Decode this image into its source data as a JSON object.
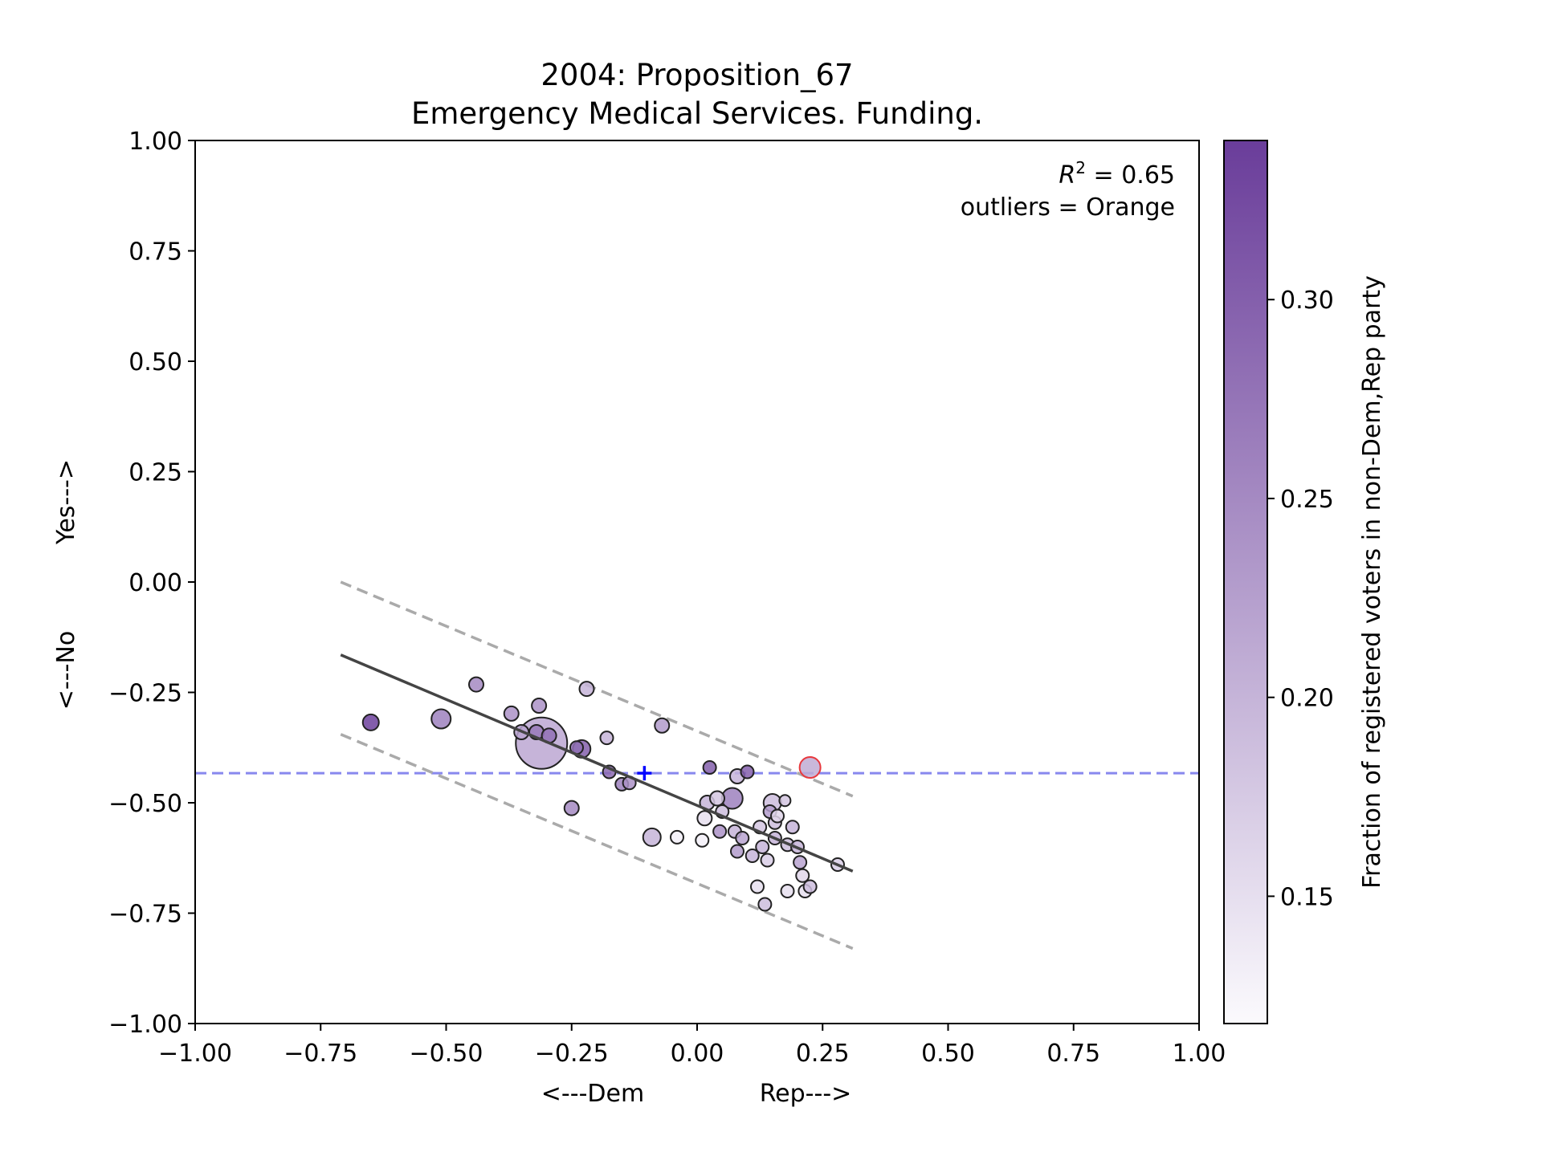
{
  "chart_data": {
    "type": "scatter",
    "title": "2004: Proposition_67",
    "subtitle": "Emergency Medical Services. Funding.",
    "xlabel_left": "<---Dem",
    "xlabel_right": "Rep--->",
    "ylabel_bottom": "<---No",
    "ylabel_top": "Yes--->",
    "xlim": [
      -1.0,
      1.0
    ],
    "ylim": [
      -1.0,
      1.0
    ],
    "xticks": [
      -1.0,
      -0.75,
      -0.5,
      -0.25,
      0.0,
      0.25,
      0.5,
      0.75,
      1.0
    ],
    "yticks": [
      -1.0,
      -0.75,
      -0.5,
      -0.25,
      0.0,
      0.25,
      0.5,
      0.75,
      1.0
    ],
    "xtick_labels": [
      "−1.00",
      "−0.75",
      "−0.50",
      "−0.25",
      "0.00",
      "0.25",
      "0.50",
      "0.75",
      "1.00"
    ],
    "ytick_labels": [
      "−1.00",
      "−0.75",
      "−0.50",
      "−0.25",
      "0.00",
      "0.25",
      "0.50",
      "0.75",
      "1.00"
    ],
    "grid": false,
    "annotations": {
      "r2_prefix": "R",
      "r2_sup": "2",
      "r2_value": " = 0.65",
      "outliers": "outliers = Orange"
    },
    "colorbar": {
      "label": "Fraction of registered voters in non-Dem,Rep party",
      "range": [
        0.118,
        0.34
      ],
      "ticks": [
        0.15,
        0.2,
        0.25,
        0.3
      ],
      "tick_labels": [
        "0.15",
        "0.20",
        "0.25",
        "0.30"
      ],
      "color_low": "#fbfafd",
      "color_high": "#6a3d9a"
    },
    "regression_line": {
      "x": [
        -0.71,
        0.31
      ],
      "y": [
        -0.165,
        -0.655
      ],
      "color": "#444444"
    },
    "upper_band": {
      "x": [
        -0.71,
        0.31
      ],
      "y": [
        0.0,
        -0.485
      ],
      "color": "#aaaaaa"
    },
    "lower_band": {
      "x": [
        -0.71,
        0.31
      ],
      "y": [
        -0.345,
        -0.83
      ],
      "color": "#aaaaaa"
    },
    "mean_line": {
      "y": -0.433,
      "color": "#8888ee"
    },
    "mean_marker": {
      "x": -0.105,
      "y": -0.433,
      "symbol": "+",
      "color": "#0000ff"
    },
    "points": [
      {
        "x": -0.31,
        "y": -0.365,
        "s": 32,
        "c": 0.215
      },
      {
        "x": -0.65,
        "y": -0.318,
        "s": 10,
        "c": 0.335
      },
      {
        "x": -0.51,
        "y": -0.31,
        "s": 12,
        "c": 0.26
      },
      {
        "x": -0.44,
        "y": -0.232,
        "s": 9,
        "c": 0.25
      },
      {
        "x": -0.37,
        "y": -0.298,
        "s": 9,
        "c": 0.24
      },
      {
        "x": -0.35,
        "y": -0.34,
        "s": 9,
        "c": 0.22
      },
      {
        "x": -0.315,
        "y": -0.28,
        "s": 9,
        "c": 0.24
      },
      {
        "x": -0.32,
        "y": -0.34,
        "s": 9,
        "c": 0.27
      },
      {
        "x": -0.295,
        "y": -0.348,
        "s": 9,
        "c": 0.28
      },
      {
        "x": -0.23,
        "y": -0.378,
        "s": 11,
        "c": 0.3
      },
      {
        "x": -0.24,
        "y": -0.375,
        "s": 8,
        "c": 0.28
      },
      {
        "x": -0.22,
        "y": -0.242,
        "s": 9,
        "c": 0.2
      },
      {
        "x": -0.18,
        "y": -0.353,
        "s": 8,
        "c": 0.2
      },
      {
        "x": -0.175,
        "y": -0.43,
        "s": 8,
        "c": 0.29
      },
      {
        "x": -0.15,
        "y": -0.458,
        "s": 8,
        "c": 0.26
      },
      {
        "x": -0.135,
        "y": -0.455,
        "s": 8,
        "c": 0.24
      },
      {
        "x": -0.25,
        "y": -0.512,
        "s": 9,
        "c": 0.25
      },
      {
        "x": -0.07,
        "y": -0.325,
        "s": 9,
        "c": 0.23
      },
      {
        "x": -0.09,
        "y": -0.578,
        "s": 11,
        "c": 0.2
      },
      {
        "x": -0.04,
        "y": -0.578,
        "s": 8,
        "c": 0.13
      },
      {
        "x": 0.025,
        "y": -0.42,
        "s": 8,
        "c": 0.3
      },
      {
        "x": 0.1,
        "y": -0.43,
        "s": 8,
        "c": 0.3
      },
      {
        "x": 0.08,
        "y": -0.44,
        "s": 9,
        "c": 0.2
      },
      {
        "x": 0.07,
        "y": -0.49,
        "s": 13,
        "c": 0.26
      },
      {
        "x": 0.02,
        "y": -0.5,
        "s": 9,
        "c": 0.2
      },
      {
        "x": 0.04,
        "y": -0.49,
        "s": 9,
        "c": 0.18
      },
      {
        "x": 0.015,
        "y": -0.535,
        "s": 9,
        "c": 0.15
      },
      {
        "x": 0.05,
        "y": -0.52,
        "s": 8,
        "c": 0.19
      },
      {
        "x": 0.045,
        "y": -0.565,
        "s": 8,
        "c": 0.24
      },
      {
        "x": 0.075,
        "y": -0.565,
        "s": 8,
        "c": 0.2
      },
      {
        "x": 0.09,
        "y": -0.58,
        "s": 8,
        "c": 0.22
      },
      {
        "x": 0.08,
        "y": -0.61,
        "s": 8,
        "c": 0.23
      },
      {
        "x": 0.01,
        "y": -0.585,
        "s": 8,
        "c": 0.13
      },
      {
        "x": 0.11,
        "y": -0.62,
        "s": 8,
        "c": 0.2
      },
      {
        "x": 0.125,
        "y": -0.555,
        "s": 8,
        "c": 0.18
      },
      {
        "x": 0.13,
        "y": -0.6,
        "s": 8,
        "c": 0.2
      },
      {
        "x": 0.14,
        "y": -0.63,
        "s": 8,
        "c": 0.17
      },
      {
        "x": 0.145,
        "y": -0.52,
        "s": 8,
        "c": 0.23
      },
      {
        "x": 0.15,
        "y": -0.5,
        "s": 11,
        "c": 0.19
      },
      {
        "x": 0.155,
        "y": -0.545,
        "s": 8,
        "c": 0.19
      },
      {
        "x": 0.16,
        "y": -0.53,
        "s": 8,
        "c": 0.16
      },
      {
        "x": 0.155,
        "y": -0.58,
        "s": 8,
        "c": 0.2
      },
      {
        "x": 0.175,
        "y": -0.495,
        "s": 7,
        "c": 0.18
      },
      {
        "x": 0.18,
        "y": -0.595,
        "s": 8,
        "c": 0.19
      },
      {
        "x": 0.19,
        "y": -0.555,
        "s": 8,
        "c": 0.2
      },
      {
        "x": 0.2,
        "y": -0.6,
        "s": 8,
        "c": 0.2
      },
      {
        "x": 0.205,
        "y": -0.635,
        "s": 8,
        "c": 0.22
      },
      {
        "x": 0.21,
        "y": -0.665,
        "s": 8,
        "c": 0.16
      },
      {
        "x": 0.215,
        "y": -0.7,
        "s": 8,
        "c": 0.15
      },
      {
        "x": 0.225,
        "y": -0.69,
        "s": 8,
        "c": 0.19
      },
      {
        "x": 0.18,
        "y": -0.7,
        "s": 8,
        "c": 0.15
      },
      {
        "x": 0.12,
        "y": -0.69,
        "s": 8,
        "c": 0.15
      },
      {
        "x": 0.135,
        "y": -0.73,
        "s": 8,
        "c": 0.19
      },
      {
        "x": 0.28,
        "y": -0.64,
        "s": 8,
        "c": 0.17
      },
      {
        "x": 0.225,
        "y": -0.42,
        "s": 13,
        "c": 0.21,
        "outlier": true
      }
    ]
  }
}
